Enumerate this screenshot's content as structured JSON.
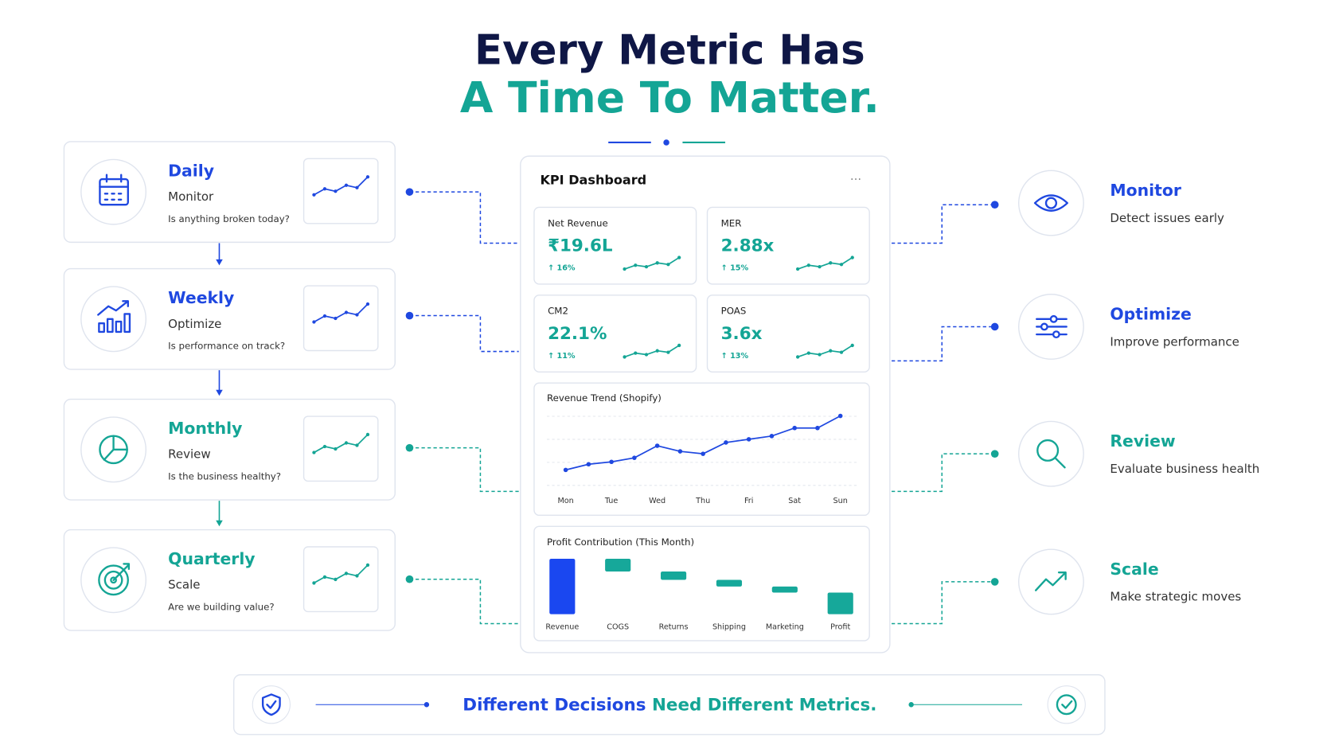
{
  "title": {
    "line1": "Every Metric Has",
    "line2": "A Time To Matter."
  },
  "cadences": [
    {
      "title": "Daily",
      "subtitle": "Monitor",
      "question": "Is anything broken today?"
    },
    {
      "title": "Weekly",
      "subtitle": "Optimize",
      "question": "Is performance on track?"
    },
    {
      "title": "Monthly",
      "subtitle": "Review",
      "question": "Is the business healthy?"
    },
    {
      "title": "Quarterly",
      "subtitle": "Scale",
      "question": "Are we building value?"
    }
  ],
  "dashboard": {
    "title": "KPI Dashboard",
    "menu": "···",
    "kpis": [
      {
        "label": "Net Revenue",
        "value": "₹19.6L",
        "change": "↑ 16%"
      },
      {
        "label": "MER",
        "value": "2.88x",
        "change": "↑ 15%"
      },
      {
        "label": "CM2",
        "value": "22.1%",
        "change": "↑ 11%"
      },
      {
        "label": "POAS",
        "value": "3.6x",
        "change": "↑ 13%"
      }
    ]
  },
  "chart_data": [
    {
      "type": "line",
      "title": "Revenue Trend (Shopify)",
      "color": "#1f48e0",
      "categories": [
        "Mon",
        null,
        "Tue",
        null,
        "Wed",
        null,
        "Thu",
        null,
        "Fri",
        null,
        "Sat",
        null,
        "Sun"
      ],
      "values": [
        45,
        52,
        55,
        60,
        75,
        68,
        65,
        79,
        83,
        87,
        97,
        97,
        112
      ],
      "ylim": [
        30,
        120
      ],
      "grid": true
    },
    {
      "type": "waterfall",
      "title": "Profit Contribution (This Month)",
      "categories": [
        "Revenue",
        "COGS",
        "Returns",
        "Shipping",
        "Marketing",
        "Profit"
      ],
      "values": [
        100,
        -23,
        -15,
        -12,
        -11,
        39
      ],
      "measure": [
        "absolute",
        "relative",
        "relative",
        "relative",
        "relative",
        "total"
      ],
      "colors": [
        "#1a47f0",
        "#16a89a",
        "#16a89a",
        "#16a89a",
        "#16a89a",
        "#16a89a"
      ],
      "ylim": [
        0,
        100
      ]
    }
  ],
  "outcomes": [
    {
      "title": "Monitor",
      "desc": "Detect issues early"
    },
    {
      "title": "Optimize",
      "desc": "Improve performance"
    },
    {
      "title": "Review",
      "desc": "Evaluate business health"
    },
    {
      "title": "Scale",
      "desc": "Make strategic moves"
    }
  ],
  "footer": {
    "text_blue": "Different Decisions",
    "text_teal": "Need Different Metrics."
  }
}
